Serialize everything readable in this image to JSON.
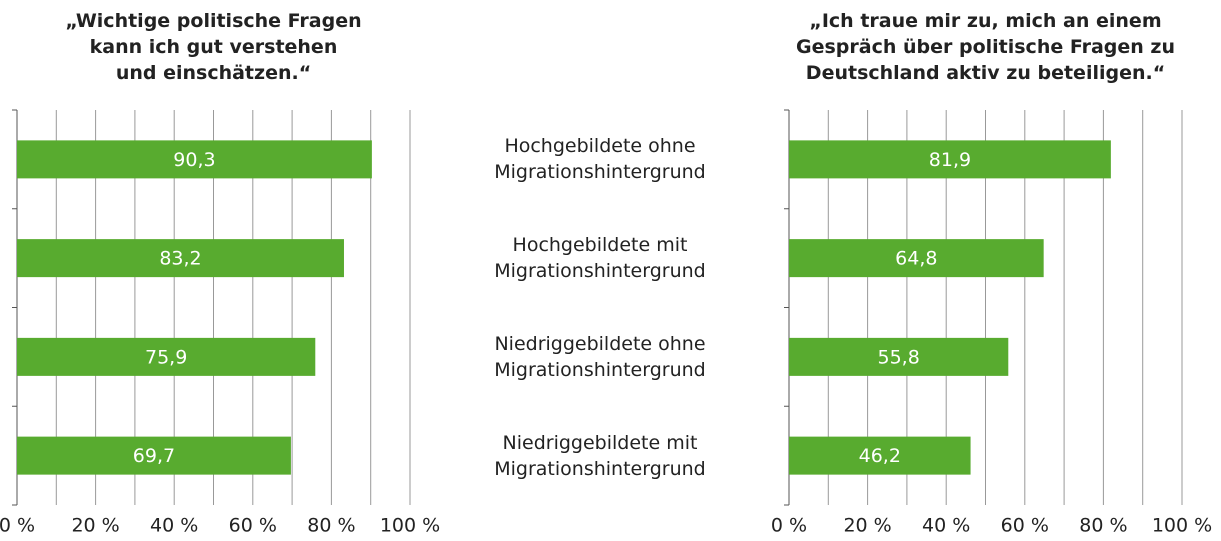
{
  "chart_data": [
    {
      "type": "barh",
      "title": "„Wichtige politische Fragen\nkann ich gut verstehen\nund einschätzen.“",
      "categories": [
        "Hochgebildete ohne\nMigrationshintergrund",
        "Hochgebildete mit\nMigrationshintergrund",
        "Niedriggebildete ohne\nMigrationshintergrund",
        "Niedriggebildete mit\nMigrationshintergrund"
      ],
      "values": [
        90.3,
        83.2,
        75.9,
        69.7
      ],
      "value_labels": [
        "90,3",
        "83,2",
        "75,9",
        "69,7"
      ],
      "color": "#58ab2f",
      "xlim": [
        0,
        100
      ],
      "xticks": [
        {
          "value": 0,
          "label": "0 %"
        },
        {
          "value": 20,
          "label": "20 %"
        },
        {
          "value": 40,
          "label": "40 %"
        },
        {
          "value": 60,
          "label": "60 %"
        },
        {
          "value": 80,
          "label": "80 %"
        },
        {
          "value": 100,
          "label": "100 %"
        }
      ],
      "minor_xticks": [
        10,
        30,
        50,
        70,
        90
      ],
      "grid": true
    },
    {
      "type": "barh",
      "title": "„Ich traue mir zu, mich an einem\nGespräch über politische Fragen zu\nDeutschland aktiv zu beteiligen.“",
      "values": [
        81.9,
        64.8,
        55.8,
        46.2
      ],
      "value_labels": [
        "81,9",
        "64,8",
        "55,8",
        "46,2"
      ],
      "color": "#58ab2f",
      "xlim": [
        0,
        100
      ],
      "xticks": [
        {
          "value": 0,
          "label": "0 %"
        },
        {
          "value": 20,
          "label": "20 %"
        },
        {
          "value": 40,
          "label": "40 %"
        },
        {
          "value": 60,
          "label": "60 %"
        },
        {
          "value": 80,
          "label": "80 %"
        },
        {
          "value": 100,
          "label": "100 %"
        }
      ],
      "minor_xticks": [
        10,
        30,
        50,
        70,
        90
      ],
      "grid": true
    }
  ]
}
